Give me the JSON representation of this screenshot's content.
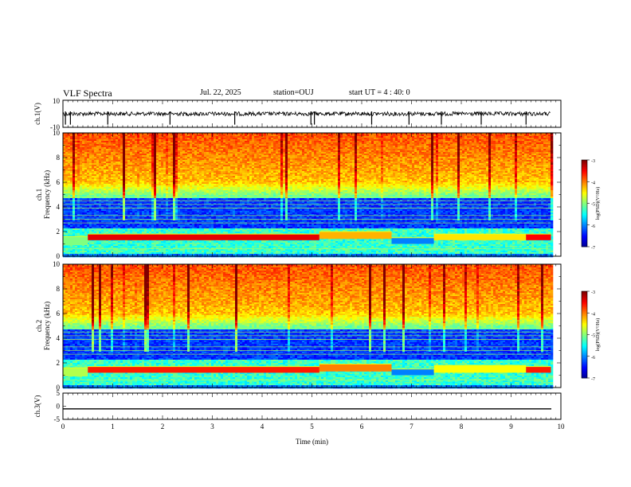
{
  "header": {
    "title": "VLF Spectra",
    "date": "Jul. 22, 2025",
    "station": "station=OUJ",
    "start_ut": "start UT =  4 : 40: 0"
  },
  "chart_data": [
    {
      "type": "line",
      "ylabel": "ch.1(V)",
      "ylim": [
        -10,
        10
      ],
      "y_ticks": [
        "10",
        "-10"
      ],
      "trace_level_v": 0,
      "spikes_min": [
        0.05,
        0.15,
        0.9,
        2.15,
        3.45,
        4.98,
        5.05,
        6.2,
        6.95,
        7.6,
        8.4,
        9.3
      ]
    },
    {
      "type": "heatmap",
      "ylabel": "ch.1\nFrequency (kHz)",
      "ylim": [
        0,
        10
      ],
      "y_ticks": [
        "0",
        "2",
        "4",
        "6",
        "8",
        "10"
      ],
      "colorbar": {
        "label": "log(PSD)(V²/Hz)",
        "range": [
          -7,
          -3
        ],
        "ticks": [
          "-3",
          "-4",
          "-5",
          "-6",
          "-7"
        ]
      },
      "segments": [
        {
          "t": [
            0,
            0.5
          ],
          "band_khz": [
            0.9,
            1.6
          ],
          "level": -5.0
        },
        {
          "t": [
            0.5,
            5.15
          ],
          "band_khz": [
            1.3,
            1.8
          ],
          "level": -3.4
        },
        {
          "t": [
            5.15,
            6.6
          ],
          "band_khz": [
            1.4,
            2.0
          ],
          "level": -4.2
        },
        {
          "t": [
            6.6,
            7.45
          ],
          "band_khz": [
            1.0,
            1.5
          ],
          "level": -6.0
        },
        {
          "t": [
            7.45,
            9.3
          ],
          "band_khz": [
            1.3,
            1.8
          ],
          "level": -4.4
        },
        {
          "t": [
            9.3,
            9.8
          ],
          "band_khz": [
            1.3,
            1.8
          ],
          "level": -3.5
        }
      ]
    },
    {
      "type": "heatmap",
      "ylabel": "ch.2\nFrequency (kHz)",
      "ylim": [
        0,
        10
      ],
      "y_ticks": [
        "0",
        "2",
        "4",
        "6",
        "8",
        "10"
      ],
      "colorbar": {
        "label": "log(PSD)(V²/Hz)",
        "range": [
          -7,
          -3
        ],
        "ticks": [
          "-3",
          "-4",
          "-5",
          "-6",
          "-7"
        ]
      },
      "segments": [
        {
          "t": [
            0,
            0.5
          ],
          "band_khz": [
            0.9,
            1.6
          ],
          "level": -4.8
        },
        {
          "t": [
            0.5,
            5.15
          ],
          "band_khz": [
            1.2,
            1.7
          ],
          "level": -3.6
        },
        {
          "t": [
            5.15,
            6.6
          ],
          "band_khz": [
            1.3,
            1.9
          ],
          "level": -4.0
        },
        {
          "t": [
            6.6,
            7.45
          ],
          "band_khz": [
            1.0,
            1.5
          ],
          "level": -6.0
        },
        {
          "t": [
            7.45,
            9.3
          ],
          "band_khz": [
            1.2,
            1.8
          ],
          "level": -4.5
        },
        {
          "t": [
            9.3,
            9.8
          ],
          "band_khz": [
            1.2,
            1.7
          ],
          "level": -3.6
        }
      ]
    },
    {
      "type": "line",
      "ylabel": "ch.3(V)",
      "ylim": [
        -5,
        5
      ],
      "y_ticks": [
        "5",
        "0",
        "-5"
      ],
      "trace_level_v": -1.0
    }
  ],
  "xaxis": {
    "label": "Time (min)",
    "xlim": [
      0,
      10
    ],
    "ticks": [
      "0",
      "1",
      "2",
      "3",
      "4",
      "5",
      "6",
      "7",
      "8",
      "9",
      "10"
    ],
    "data_end_min": 9.8
  },
  "colors": {
    "jet": [
      "#00008f",
      "#0000ff",
      "#0080ff",
      "#00ffff",
      "#80ff80",
      "#ffff00",
      "#ff8000",
      "#ff0000",
      "#800000"
    ]
  }
}
